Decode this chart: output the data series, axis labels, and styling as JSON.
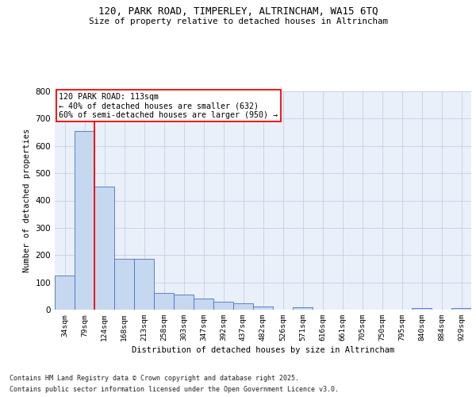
{
  "title_line1": "120, PARK ROAD, TIMPERLEY, ALTRINCHAM, WA15 6TQ",
  "title_line2": "Size of property relative to detached houses in Altrincham",
  "xlabel": "Distribution of detached houses by size in Altrincham",
  "ylabel": "Number of detached properties",
  "footer_line1": "Contains HM Land Registry data © Crown copyright and database right 2025.",
  "footer_line2": "Contains public sector information licensed under the Open Government Licence v3.0.",
  "cat_labels": [
    "34sqm",
    "79sqm",
    "124sqm",
    "168sqm",
    "213sqm",
    "258sqm",
    "303sqm",
    "347sqm",
    "392sqm",
    "437sqm",
    "482sqm",
    "526sqm",
    "571sqm",
    "616sqm",
    "661sqm",
    "705sqm",
    "750sqm",
    "795sqm",
    "840sqm",
    "884sqm",
    "929sqm"
  ],
  "values": [
    125,
    655,
    450,
    185,
    185,
    60,
    55,
    42,
    28,
    22,
    12,
    0,
    10,
    0,
    0,
    0,
    0,
    0,
    5,
    0,
    5
  ],
  "bar_color": "#c5d8f0",
  "bar_edge_color": "#4472c4",
  "grid_color": "#c8d4e8",
  "background_color": "#eaf0fa",
  "red_line_x": 2,
  "annotation_text": "120 PARK ROAD: 113sqm\n← 40% of detached houses are smaller (632)\n60% of semi-detached houses are larger (950) →",
  "ylim": [
    0,
    800
  ],
  "yticks": [
    0,
    100,
    200,
    300,
    400,
    500,
    600,
    700,
    800
  ]
}
